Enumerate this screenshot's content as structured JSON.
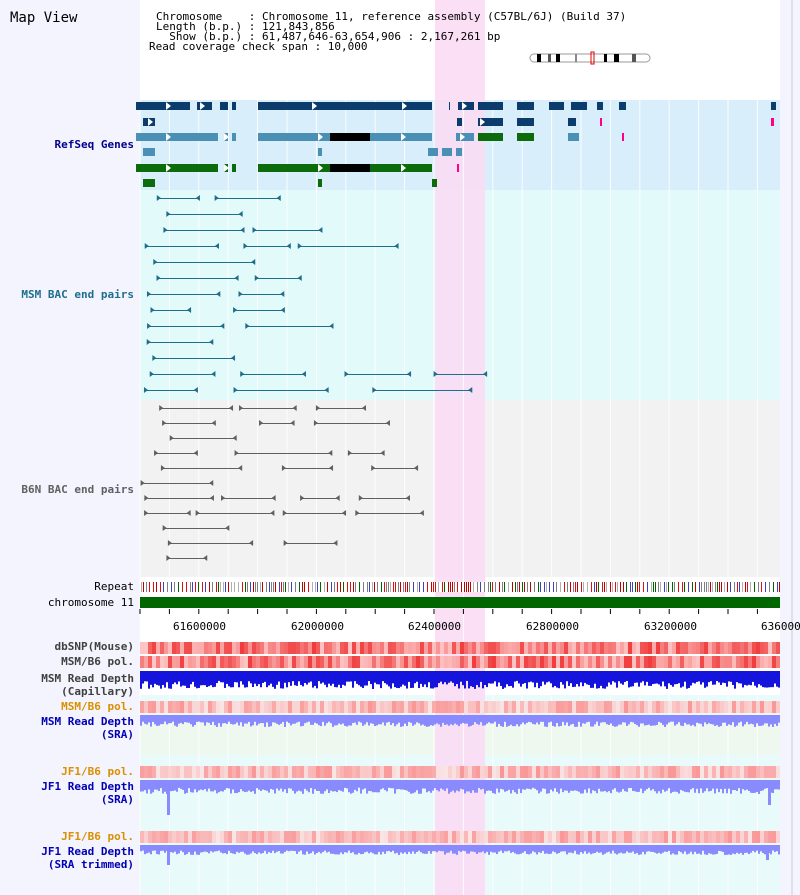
{
  "title": "Map View",
  "header": {
    "line1": "Chromosome    : Chromosome 11, reference assembly (C57BL/6J) (Build 37)",
    "line2": "Length (b.p.) : 121,843,856",
    "line3": "  Show (b.p.) : 61,487,646-63,654,906 : 2,167,261 bp",
    "line4": "Read coverage check span : 10,000"
  },
  "tracks": {
    "refseq": "RefSeq Genes",
    "msm_bac": "MSM BAC end pairs",
    "b6n_bac": "B6N BAC end pairs",
    "repeat": "Repeat",
    "chromosome": "chromosome 11",
    "dbsnp": "dbSNP(Mouse)",
    "msm_b6_pol_1": "MSM/B6 pol.",
    "msm_depth_cap_1": "MSM Read Depth",
    "msm_depth_cap_2": "(Capillary)",
    "msm_b6_pol_2": "MSM/B6 pol.",
    "msm_depth_sra_1": "MSM Read Depth",
    "msm_depth_sra_2": "(SRA)",
    "jf1_pol_1": "JF1/B6 pol.",
    "jf1_depth_sra_1": "JF1 Read Depth",
    "jf1_depth_sra_2": "(SRA)",
    "jf1_pol_2": "JF1/B6 pol.",
    "jf1_depth_trim_1": "JF1 Read Depth",
    "jf1_depth_trim_2": "(SRA trimmed)"
  },
  "axis": {
    "ticks": [
      "61600000",
      "62000000",
      "62400000",
      "62800000",
      "63200000",
      "636000"
    ]
  },
  "colors": {
    "refseq_bg": "#d8eefa",
    "msm_bg": "#e2fafa",
    "b6n_bg": "#f2f2f2",
    "highlight": "#fadcf4",
    "gene_dark": "#0c3c6c",
    "gene_mid": "#4a90b4",
    "gene_green": "#0c6c0c",
    "msm_line": "#1e6e8c",
    "b6n_line": "#606060",
    "chrom": "#006600",
    "depth_blue": "#1414dc",
    "depth_light": "#8a8aff"
  }
}
